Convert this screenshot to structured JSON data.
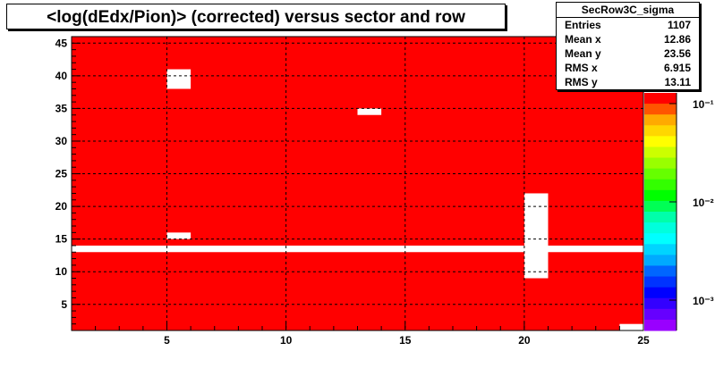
{
  "chart_data": {
    "type": "heatmap",
    "title": "<log(dEdx/Pion)> (corrected) versus sector and row",
    "xlim": [
      1,
      25
    ],
    "ylim": [
      1,
      46
    ],
    "x_ticks": [
      "5",
      "10",
      "15",
      "20",
      "25"
    ],
    "y_ticks": [
      "5",
      "10",
      "15",
      "20",
      "25",
      "30",
      "35",
      "40",
      "45"
    ],
    "colorbar_ticks": [
      "10⁻¹",
      "10⁻²",
      "10⁻³"
    ],
    "colorbar_colors": [
      "#ff0000",
      "#ff5500",
      "#ffaa00",
      "#ffd700",
      "#ffff00",
      "#ccff00",
      "#99ff00",
      "#66ff00",
      "#33ff00",
      "#00ff00",
      "#00ff55",
      "#00ffaa",
      "#00ffdd",
      "#00ffff",
      "#00d4ff",
      "#00aaff",
      "#0066ff",
      "#0033ff",
      "#0000ff",
      "#3300ff",
      "#6600ff",
      "#9900ff"
    ],
    "fill_color": "#ff0000",
    "grid": true,
    "empty_cells": [
      {
        "x": [
          5,
          6
        ],
        "y": [
          38,
          41
        ]
      },
      {
        "x": [
          5,
          6
        ],
        "y": [
          15,
          16
        ]
      },
      {
        "x": [
          13,
          14
        ],
        "y": [
          34,
          35
        ]
      },
      {
        "x": [
          1,
          25
        ],
        "y": [
          13,
          14
        ]
      },
      {
        "x": [
          20,
          21
        ],
        "y": [
          9,
          22
        ]
      },
      {
        "x": [
          24,
          25
        ],
        "y": [
          1,
          2
        ]
      }
    ],
    "stats": {
      "name": "SecRow3C_sigma",
      "rows": [
        {
          "label": "Entries",
          "value": "1107"
        },
        {
          "label": "Mean x",
          "value": "12.86"
        },
        {
          "label": "Mean y",
          "value": "23.56"
        },
        {
          "label": "RMS x",
          "value": "6.915"
        },
        {
          "label": "RMS y",
          "value": "13.11"
        }
      ]
    }
  }
}
